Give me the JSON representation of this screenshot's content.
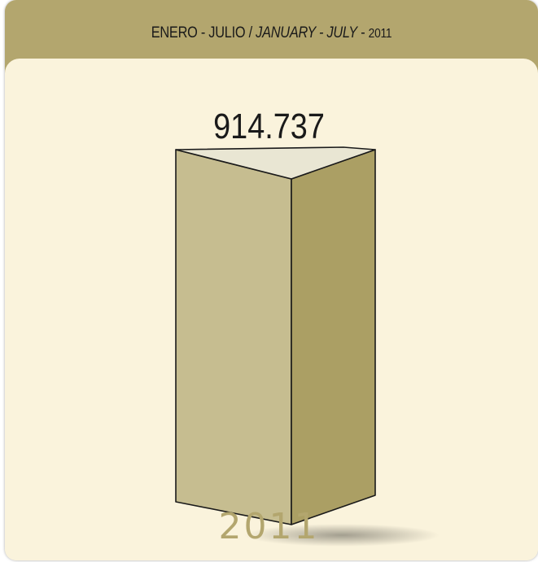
{
  "header": {
    "es": "ENERO - JULIO /",
    "en": "JANUARY - JULY",
    "sep": "-",
    "year": "2011"
  },
  "colors": {
    "header_bg": "#b3a66e",
    "panel_bg": "#faf3dc",
    "box_front": "#c6bd90",
    "box_side": "#ab9f64",
    "box_top": "#e9e6d3",
    "year_text": "#b3a66e"
  },
  "chart_data": {
    "type": "bar",
    "categories": [
      "2011"
    ],
    "values": [
      914737
    ],
    "value_labels": [
      "914.737"
    ]
  }
}
